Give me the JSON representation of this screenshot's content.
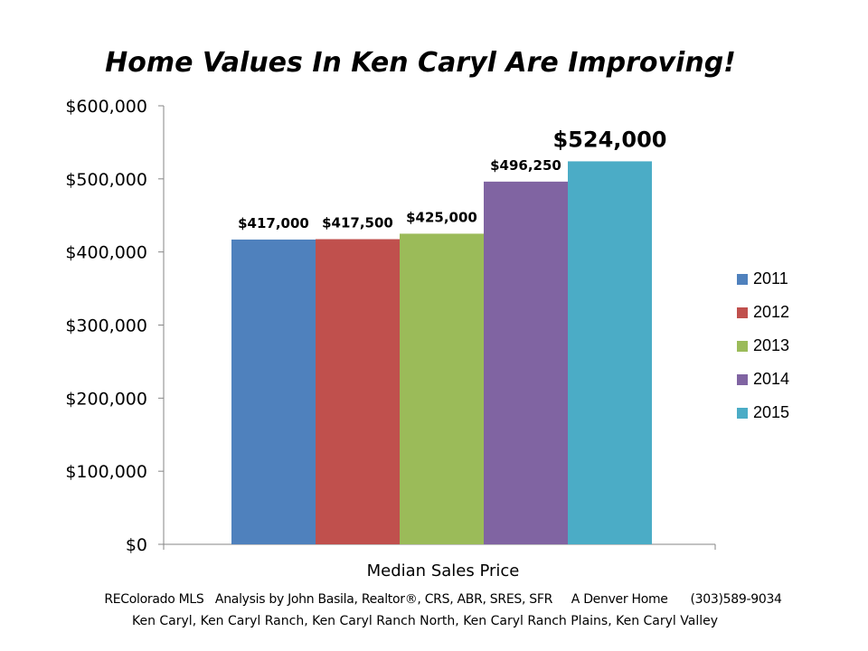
{
  "chart_data": {
    "type": "bar",
    "title": "Home Values In Ken Caryl Are Improving!",
    "xlabel": "Median Sales Price",
    "ylabel": "",
    "ylim": [
      0,
      600000
    ],
    "yticks": [
      0,
      100000,
      200000,
      300000,
      400000,
      500000,
      600000
    ],
    "ytick_labels": [
      "$0",
      "$100,000",
      "$200,000",
      "$300,000",
      "$400,000",
      "$500,000",
      "$600,000"
    ],
    "categories": [
      "Median Sales Price"
    ],
    "series": [
      {
        "name": "2011",
        "values": [
          417000
        ],
        "label": "$417,000",
        "color": "#4F81BD"
      },
      {
        "name": "2012",
        "values": [
          417500
        ],
        "label": "$417,500",
        "color": "#C0504D"
      },
      {
        "name": "2013",
        "values": [
          425000
        ],
        "label": "$425,000",
        "color": "#9BBB59"
      },
      {
        "name": "2014",
        "values": [
          496250
        ],
        "label": "$496,250",
        "color": "#8064A2"
      },
      {
        "name": "2015",
        "values": [
          524000
        ],
        "label": "$524,000",
        "color": "#4BACC6"
      }
    ],
    "grid": false,
    "legend_position": "right"
  },
  "footer": {
    "line1": "REColorado MLS   Analysis by John Basila, Realtor®, CRS, ABR, SRES, SFR     A Denver Home      (303)589-9034",
    "line2": "Ken Caryl, Ken Caryl Ranch, Ken Caryl Ranch North, Ken Caryl Ranch Plains, Ken Caryl Valley"
  }
}
